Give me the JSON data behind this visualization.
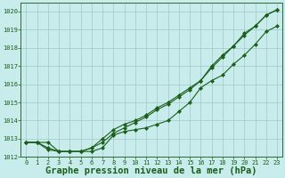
{
  "background_color": "#c8ecec",
  "grid_color": "#a0c8c8",
  "line_color": "#1a5e1a",
  "marker_color": "#1a5e1a",
  "xlabel": "Graphe pression niveau de la mer (hPa)",
  "xlabel_fontsize": 7.5,
  "ylim": [
    1012,
    1020.5
  ],
  "xlim": [
    -0.5,
    23.5
  ],
  "yticks": [
    1012,
    1013,
    1014,
    1015,
    1016,
    1017,
    1018,
    1019,
    1020
  ],
  "xticks": [
    0,
    1,
    2,
    3,
    4,
    5,
    6,
    7,
    8,
    9,
    10,
    11,
    12,
    13,
    14,
    15,
    16,
    17,
    18,
    19,
    20,
    21,
    22,
    23
  ],
  "series1": [
    1012.8,
    1012.8,
    1012.8,
    1012.3,
    1012.3,
    1012.3,
    1012.3,
    1012.5,
    1013.2,
    1013.4,
    1013.5,
    1013.6,
    1013.8,
    1014.0,
    1014.5,
    1015.0,
    1015.8,
    1016.2,
    1016.5,
    1017.1,
    1017.6,
    1018.2,
    1018.9,
    1019.2
  ],
  "series2": [
    1012.8,
    1012.8,
    1012.5,
    1012.3,
    1012.3,
    1012.3,
    1012.5,
    1013.0,
    1013.5,
    1013.8,
    1014.0,
    1014.3,
    1014.7,
    1015.0,
    1015.4,
    1015.8,
    1016.2,
    1017.0,
    1017.6,
    1018.1,
    1018.8,
    1019.2,
    1019.8,
    1020.1
  ],
  "series3": [
    1012.8,
    1012.8,
    1012.4,
    1012.3,
    1012.3,
    1012.3,
    1012.5,
    1012.8,
    1013.3,
    1013.6,
    1013.9,
    1014.2,
    1014.6,
    1014.9,
    1015.3,
    1015.7,
    1016.2,
    1016.9,
    1017.5,
    1018.1,
    1018.7,
    1019.2,
    1019.8,
    1020.1
  ]
}
